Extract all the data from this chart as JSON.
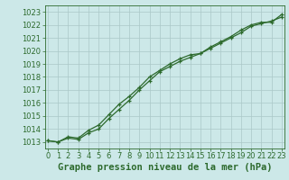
{
  "title": "Graphe pression niveau de la mer (hPa)",
  "x": [
    0,
    1,
    2,
    3,
    4,
    5,
    6,
    7,
    8,
    9,
    10,
    11,
    12,
    13,
    14,
    15,
    16,
    17,
    18,
    19,
    20,
    21,
    22,
    23
  ],
  "line1": [
    1013.1,
    1013.0,
    1013.3,
    1013.2,
    1013.7,
    1014.0,
    1014.8,
    1015.5,
    1016.2,
    1017.0,
    1017.7,
    1018.4,
    1018.8,
    1019.2,
    1019.5,
    1019.8,
    1020.2,
    1020.6,
    1021.0,
    1021.4,
    1021.9,
    1022.1,
    1022.3,
    1022.6
  ],
  "line2": [
    1013.1,
    1013.0,
    1013.4,
    1013.3,
    1013.9,
    1014.3,
    1015.1,
    1015.9,
    1016.5,
    1017.2,
    1018.0,
    1018.5,
    1019.0,
    1019.4,
    1019.7,
    1019.8,
    1020.3,
    1020.7,
    1021.1,
    1021.6,
    1022.0,
    1022.2,
    1022.2,
    1022.8
  ],
  "line_color": "#2d6a2d",
  "bg_color": "#cce8e8",
  "grid_color": "#aac8c8",
  "ylim": [
    1012.5,
    1023.5
  ],
  "xlim": [
    -0.3,
    23.3
  ],
  "yticks": [
    1013,
    1014,
    1015,
    1016,
    1017,
    1018,
    1019,
    1020,
    1021,
    1022,
    1023
  ],
  "xticks": [
    0,
    1,
    2,
    3,
    4,
    5,
    6,
    7,
    8,
    9,
    10,
    11,
    12,
    13,
    14,
    15,
    16,
    17,
    18,
    19,
    20,
    21,
    22,
    23
  ],
  "title_fontsize": 7.5,
  "tick_fontsize": 6.0,
  "line_width": 0.9,
  "marker": "+"
}
